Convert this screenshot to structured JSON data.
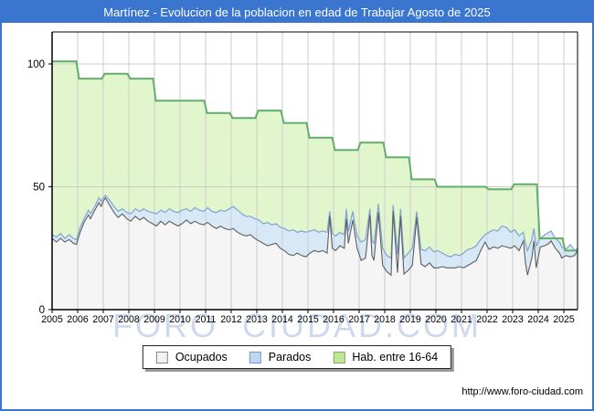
{
  "title": "Martínez - Evolucion de la poblacion en edad de Trabajar Agosto de 2025",
  "watermark": "FORO  CIUDAD.COM",
  "footer_url": "http://www.foro-ciudad.com",
  "colors": {
    "frame": "#3a76d0",
    "titlebar_bg": "#3a76d0",
    "titlebar_text": "#ffffff",
    "grid": "#cccccc",
    "watermark": "#cdd9ed",
    "hab_fill": "#e2f6cd",
    "hab_stroke": "#63ae6a",
    "parados_fill": "#d7e8f7",
    "parados_stroke": "#7fa3d3",
    "ocupados_fill": "#f5f5f5",
    "ocupados_stroke": "#5f5f5f",
    "axis": "#000000"
  },
  "legend": {
    "items": [
      {
        "label": "Ocupados",
        "fill": "#f2f2f2",
        "border": "#858585"
      },
      {
        "label": "Parados",
        "fill": "#bdd7f0",
        "border": "#7b9cc9"
      },
      {
        "label": "Hab. entre 16-64",
        "fill": "#bce896",
        "border": "#84a86b"
      }
    ]
  },
  "chart_data": {
    "type": "area",
    "title": "Martínez - Evolucion de la poblacion en edad de Trabajar Agosto de 2025",
    "xlabel": "",
    "ylabel": "",
    "grid": true,
    "legend_position": "bottom-center",
    "x_axis": {
      "years": [
        2005,
        2006,
        2007,
        2008,
        2009,
        2010,
        2011,
        2012,
        2013,
        2014,
        2015,
        2016,
        2017,
        2018,
        2019,
        2020,
        2021,
        2022,
        2023,
        2024,
        2025
      ]
    },
    "y_axis": {
      "ticks": [
        0,
        50,
        100
      ],
      "range": [
        0,
        113
      ]
    },
    "series": [
      {
        "name": "Hab. entre 16-64",
        "kind": "yearly-step",
        "values_by_year": [
          101,
          94,
          96,
          94,
          85,
          85,
          80,
          78,
          81,
          76,
          70,
          65,
          68,
          62,
          53,
          50,
          50,
          49,
          51,
          29,
          24
        ]
      },
      {
        "name": "Ocupados / Ocupados+Parados (monthly, t ocupados activos)",
        "kind": "monthly-lines",
        "points": [
          [
            2005.0,
            29,
            30.5
          ],
          [
            2005.17,
            27.5,
            29.5
          ],
          [
            2005.33,
            29,
            31
          ],
          [
            2005.5,
            27.5,
            29
          ],
          [
            2005.67,
            28.5,
            30.5
          ],
          [
            2005.83,
            27,
            29
          ],
          [
            2005.95,
            26.5,
            28.5
          ],
          [
            2006.08,
            31,
            33
          ],
          [
            2006.25,
            35.5,
            37
          ],
          [
            2006.42,
            38.5,
            40.5
          ],
          [
            2006.5,
            37,
            39
          ],
          [
            2006.67,
            40.5,
            42
          ],
          [
            2006.83,
            43.5,
            45.5
          ],
          [
            2006.92,
            42,
            44
          ],
          [
            2007.0,
            44,
            45.5
          ],
          [
            2007.08,
            45.5,
            46.5
          ],
          [
            2007.25,
            42.5,
            44.5
          ],
          [
            2007.42,
            39.5,
            42
          ],
          [
            2007.58,
            37.5,
            40
          ],
          [
            2007.75,
            39,
            41
          ],
          [
            2007.92,
            37,
            39.5
          ],
          [
            2008.08,
            36,
            39
          ],
          [
            2008.25,
            38,
            41
          ],
          [
            2008.42,
            36.5,
            40
          ],
          [
            2008.58,
            37.5,
            41
          ],
          [
            2008.75,
            36,
            40
          ],
          [
            2008.92,
            35,
            39.5
          ],
          [
            2009.08,
            34,
            39
          ],
          [
            2009.25,
            36,
            40.5
          ],
          [
            2009.42,
            34.5,
            39.5
          ],
          [
            2009.58,
            36,
            41
          ],
          [
            2009.75,
            35,
            40
          ],
          [
            2009.92,
            34,
            39.5
          ],
          [
            2010.08,
            35,
            40.5
          ],
          [
            2010.25,
            36.5,
            41
          ],
          [
            2010.42,
            35,
            40
          ],
          [
            2010.58,
            36,
            41.5
          ],
          [
            2010.75,
            35,
            40.5
          ],
          [
            2010.92,
            34.5,
            40
          ],
          [
            2011.08,
            35.5,
            41.5
          ],
          [
            2011.25,
            34,
            40
          ],
          [
            2011.42,
            33,
            39.5
          ],
          [
            2011.58,
            34,
            40.5
          ],
          [
            2011.75,
            33,
            40
          ],
          [
            2011.92,
            32.5,
            41
          ],
          [
            2012.08,
            33,
            42
          ],
          [
            2012.25,
            31.5,
            40.5
          ],
          [
            2012.42,
            30.5,
            39
          ],
          [
            2012.58,
            30,
            38
          ],
          [
            2012.75,
            30.5,
            38
          ],
          [
            2012.92,
            29,
            37
          ],
          [
            2013.08,
            28,
            36.5
          ],
          [
            2013.25,
            27,
            35
          ],
          [
            2013.42,
            26,
            35.5
          ],
          [
            2013.58,
            26.5,
            34.5
          ],
          [
            2013.75,
            27,
            35
          ],
          [
            2013.92,
            25,
            33.5
          ],
          [
            2014.08,
            24,
            33
          ],
          [
            2014.25,
            22.5,
            32
          ],
          [
            2014.42,
            22,
            32.5
          ],
          [
            2014.58,
            23,
            31.5
          ],
          [
            2014.75,
            22,
            32
          ],
          [
            2014.92,
            21.5,
            31.5
          ],
          [
            2015.08,
            23,
            32
          ],
          [
            2015.25,
            24,
            32.5
          ],
          [
            2015.42,
            23.5,
            31.5
          ],
          [
            2015.58,
            24,
            32
          ],
          [
            2015.75,
            23,
            31.5
          ],
          [
            2015.85,
            38,
            40
          ],
          [
            2015.95,
            25,
            31
          ],
          [
            2016.08,
            24,
            30
          ],
          [
            2016.25,
            26,
            31.5
          ],
          [
            2016.42,
            25,
            30.5
          ],
          [
            2016.5,
            37,
            41
          ],
          [
            2016.58,
            27,
            32
          ],
          [
            2016.75,
            36.5,
            40
          ],
          [
            2016.92,
            25,
            30
          ],
          [
            2017.08,
            20,
            27.5
          ],
          [
            2017.25,
            21,
            28.5
          ],
          [
            2017.42,
            38.5,
            41
          ],
          [
            2017.5,
            22,
            28
          ],
          [
            2017.58,
            20,
            27
          ],
          [
            2017.75,
            39.5,
            43
          ],
          [
            2017.92,
            18,
            25
          ],
          [
            2018.08,
            15.5,
            22
          ],
          [
            2018.25,
            14,
            21
          ],
          [
            2018.33,
            40,
            42.5
          ],
          [
            2018.5,
            15,
            22.5
          ],
          [
            2018.62,
            38,
            41
          ],
          [
            2018.75,
            14.5,
            21
          ],
          [
            2018.92,
            16,
            23
          ],
          [
            2019.08,
            18,
            25
          ],
          [
            2019.25,
            37.5,
            40
          ],
          [
            2019.42,
            18.5,
            24.5
          ],
          [
            2019.58,
            17.5,
            24
          ],
          [
            2019.75,
            19,
            25.5
          ],
          [
            2019.92,
            17,
            23.5
          ],
          [
            2020.08,
            17,
            24
          ],
          [
            2020.25,
            17.5,
            23
          ],
          [
            2020.42,
            17,
            22
          ],
          [
            2020.58,
            17,
            21.5
          ],
          [
            2020.75,
            17,
            22.5
          ],
          [
            2020.92,
            17.5,
            22
          ],
          [
            2021.08,
            17,
            23
          ],
          [
            2021.25,
            18,
            24.5
          ],
          [
            2021.42,
            19,
            25
          ],
          [
            2021.58,
            20,
            26
          ],
          [
            2021.75,
            24,
            28.5
          ],
          [
            2021.92,
            27.5,
            30.5
          ],
          [
            2022.08,
            24.5,
            31.5
          ],
          [
            2022.25,
            25.5,
            32.5
          ],
          [
            2022.42,
            25,
            32
          ],
          [
            2022.58,
            26,
            34
          ],
          [
            2022.75,
            25.5,
            33.5
          ],
          [
            2022.92,
            25,
            31.5
          ],
          [
            2023.08,
            26,
            32.5
          ],
          [
            2023.25,
            24,
            30
          ],
          [
            2023.42,
            28,
            31.5
          ],
          [
            2023.5,
            19,
            27
          ],
          [
            2023.58,
            14,
            24
          ],
          [
            2023.75,
            21,
            28.5
          ],
          [
            2023.83,
            28,
            33
          ],
          [
            2023.92,
            17,
            26
          ],
          [
            2024.08,
            25.5,
            29
          ],
          [
            2024.25,
            26,
            30.5
          ],
          [
            2024.42,
            27,
            31.5
          ],
          [
            2024.5,
            28,
            32
          ],
          [
            2024.67,
            25,
            29
          ],
          [
            2024.83,
            23,
            27.5
          ],
          [
            2024.92,
            21,
            25.5
          ],
          [
            2025.08,
            22,
            24.5
          ],
          [
            2025.25,
            21.5,
            26.5
          ],
          [
            2025.42,
            22,
            24
          ],
          [
            2025.58,
            24,
            25
          ]
        ]
      }
    ]
  }
}
